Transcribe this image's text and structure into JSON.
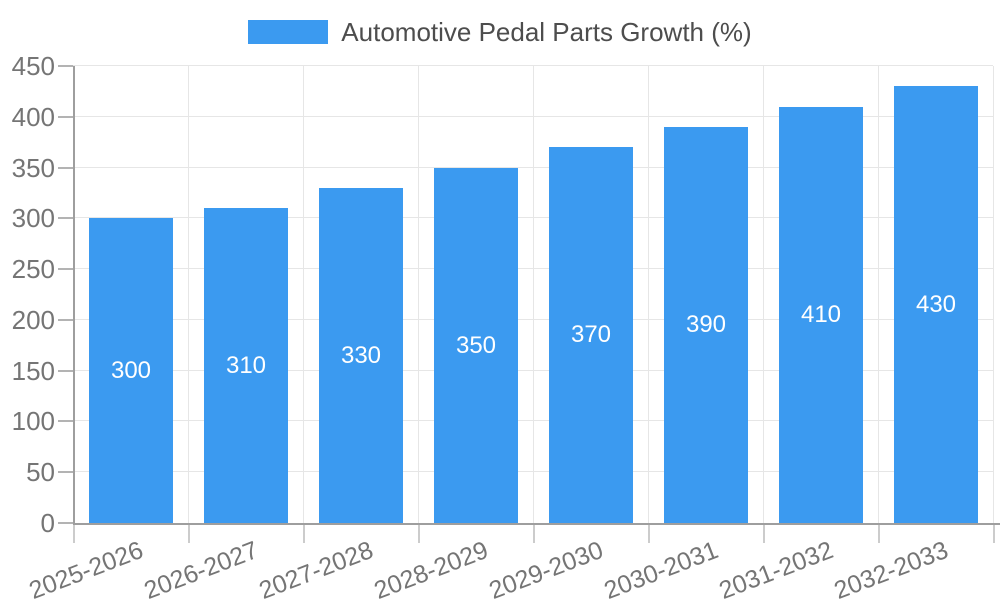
{
  "chart_data": {
    "type": "bar",
    "title": "Automotive Pedal Parts Growth (%)",
    "legend": {
      "position": "top",
      "entries": [
        "Automotive Pedal Parts Growth (%)"
      ]
    },
    "categories": [
      "2025-2026",
      "2026-2027",
      "2027-2028",
      "2028-2029",
      "2029-2030",
      "2030-2031",
      "2031-2032",
      "2032-2033"
    ],
    "values": [
      300,
      310,
      330,
      350,
      370,
      390,
      410,
      430
    ],
    "bar_value_labels": [
      "300",
      "310",
      "330",
      "350",
      "370",
      "390",
      "410",
      "430"
    ],
    "y_ticks": [
      0,
      50,
      100,
      150,
      200,
      250,
      300,
      350,
      400,
      450
    ],
    "ylim": [
      0,
      450
    ],
    "xlabel": "",
    "ylabel": "",
    "grid": true,
    "colors": {
      "bar": "#3B9AF0",
      "bar_label": "#FFFFFF",
      "axis": "#9E9E9E",
      "gridline": "#E6E6E6",
      "tick_label": "#757575",
      "legend_text": "#4D4D4D"
    }
  }
}
